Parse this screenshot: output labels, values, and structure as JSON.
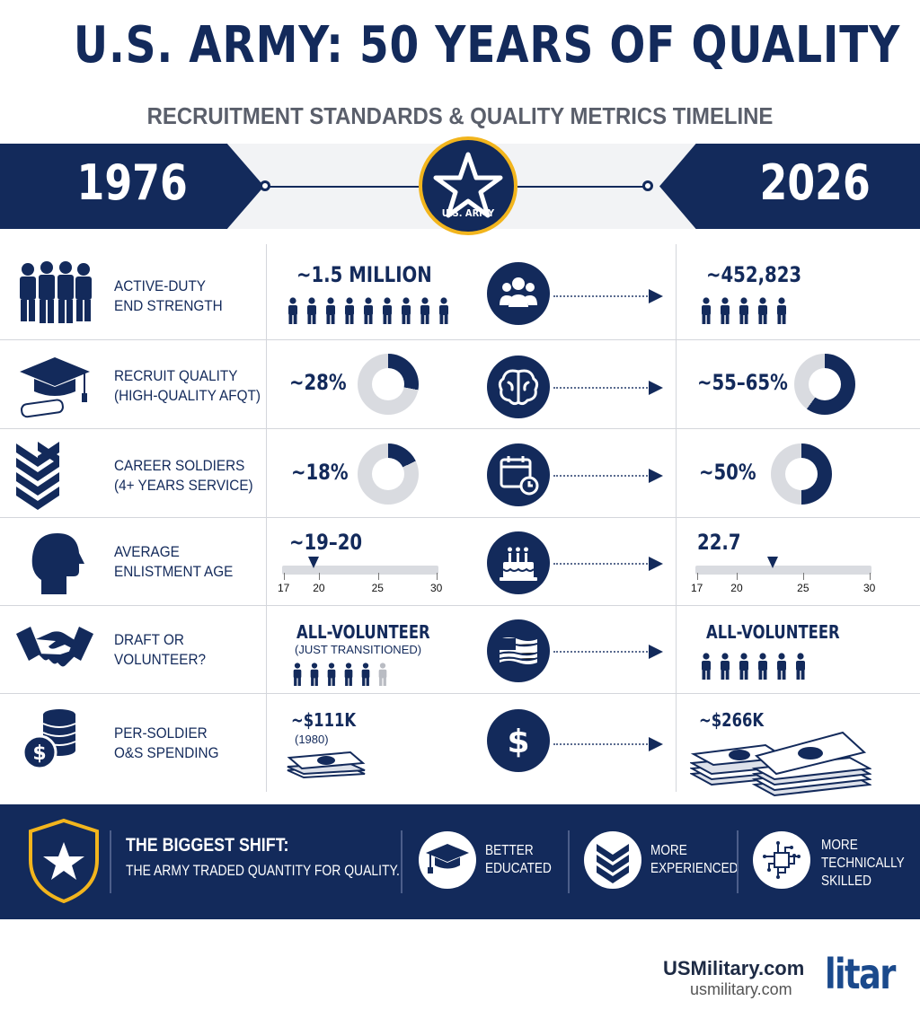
{
  "header": {
    "title": "U.S. ARMY: 50 YEARS OF QUALITY",
    "subtitle": "RECRUITMENT STANDARDS & QUALITY METRICS TIMELINE"
  },
  "timeline": {
    "start_year": "1976",
    "end_year": "2026",
    "emblem_label": "U.S. ARMY"
  },
  "metrics": [
    {
      "label_line1": "ACTIVE-DUTY",
      "label_line2": "END STRENGTH",
      "icon": "soldiers-icon",
      "mid_icon": "group-icon",
      "v1976": "~1.5 MILLION",
      "v2026": "~452,823",
      "figures_1976": 9,
      "figures_2026": 5
    },
    {
      "label_line1": "RECRUIT QUALITY",
      "label_line2": "(HIGH-QUALITY AFQT)",
      "icon": "graduation-cap-icon",
      "mid_icon": "brain-icon",
      "v1976": "~28%",
      "v2026": "~55–65%",
      "donut_1976": 28,
      "donut_2026": 60
    },
    {
      "label_line1": "CAREER SOLDIERS",
      "label_line2": "(4+ YEARS SERVICE)",
      "icon": "chevron-rank-icon",
      "mid_icon": "calendar-clock-icon",
      "v1976": "~18%",
      "v2026": "~50%",
      "donut_1976": 18,
      "donut_2026": 50
    },
    {
      "label_line1": "AVERAGE",
      "label_line2": "ENLISTMENT AGE",
      "icon": "head-profile-icon",
      "mid_icon": "birthday-cake-icon",
      "v1976": "~19–20",
      "v2026": "22.7",
      "age_1976": 19.5,
      "age_2026": 22.7,
      "age_ticks": [
        "17",
        "20",
        "25",
        "30"
      ]
    },
    {
      "label_line1": "DRAFT OR",
      "label_line2": "VOLUNTEER?",
      "icon": "handshake-icon",
      "mid_icon": "flag-icon",
      "v1976": "ALL-VOLUNTEER",
      "v1976_note": "(JUST TRANSITIONED)",
      "v2026": "ALL-VOLUNTEER"
    },
    {
      "label_line1": "PER-SOLDIER",
      "label_line2": "O&S SPENDING",
      "icon": "coins-icon",
      "mid_icon": "dollar-icon",
      "v1976": "~$111K",
      "v1976_note": "(1980)",
      "v2026": "~$266K"
    }
  ],
  "footer": {
    "headline": "THE BIGGEST SHIFT:",
    "subline": "THE ARMY TRADED QUANTITY FOR QUALITY.",
    "items": [
      {
        "line1": "BETTER",
        "line2": "EDUCATED",
        "icon": "graduation-cap-icon"
      },
      {
        "line1": "MORE",
        "line2": "EXPERIENCED",
        "icon": "chevron-rank-icon"
      },
      {
        "line1": "MORE",
        "line2": "TECHNICALLY",
        "line3": "SKILLED",
        "icon": "circuit-icon"
      }
    ]
  },
  "brand": {
    "name": "USMilitary.com",
    "url": "usmilitary.com",
    "logo_text": "litar"
  },
  "colors": {
    "navy": "#132a5b",
    "gold": "#f2b51d",
    "grey": "#d9dbe0"
  }
}
